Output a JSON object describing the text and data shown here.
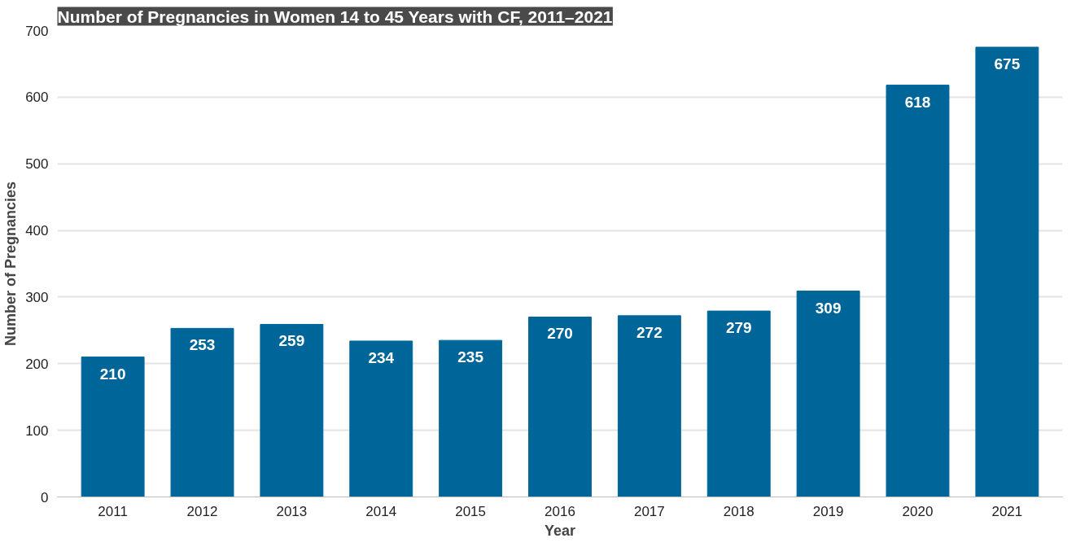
{
  "chart_data": {
    "type": "bar",
    "title": "Number of Pregnancies in Women 14 to 45 Years with CF, 2011–2021",
    "xlabel": "Year",
    "ylabel": "Number of Pregnancies",
    "categories": [
      "2011",
      "2012",
      "2013",
      "2014",
      "2015",
      "2016",
      "2017",
      "2018",
      "2019",
      "2020",
      "2021"
    ],
    "values": [
      210,
      253,
      259,
      234,
      235,
      270,
      272,
      279,
      309,
      618,
      675
    ],
    "color": "#006699",
    "ylim": [
      0,
      700
    ],
    "yticks": [
      0,
      100,
      200,
      300,
      400,
      500,
      600,
      700
    ],
    "grid": "y",
    "data_labels": true
  }
}
